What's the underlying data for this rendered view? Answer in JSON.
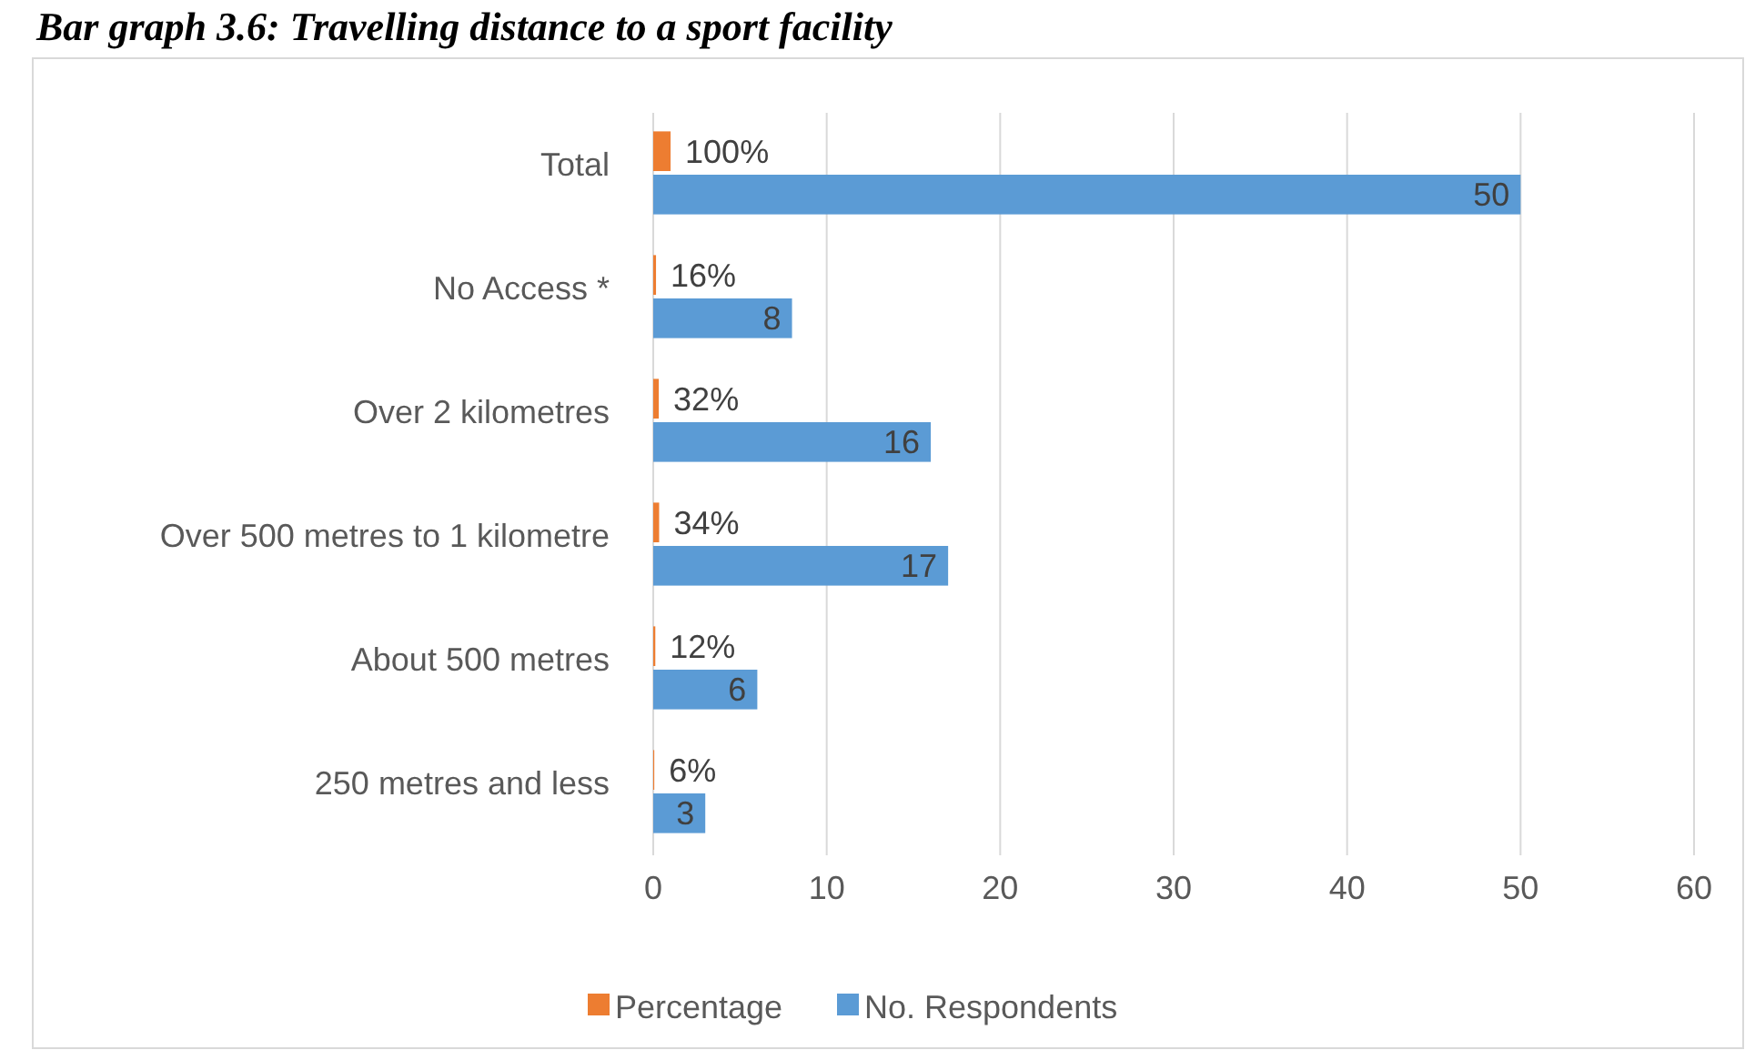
{
  "chart_data": {
    "type": "bar",
    "orientation": "horizontal",
    "title": "Bar graph 3.6: Travelling distance to a sport facility",
    "categories": [
      "Total",
      "No Access *",
      "Over 2 kilometres",
      "Over 500 metres to 1 kilometre",
      "About 500 metres",
      "250 metres and less"
    ],
    "series": [
      {
        "name": "Percentage",
        "color": "#ed7d31",
        "values": [
          1,
          0.16,
          0.32,
          0.34,
          0.12,
          0.06
        ],
        "value_labels": [
          "100%",
          "16%",
          "32%",
          "34%",
          "12%",
          "6%"
        ]
      },
      {
        "name": "No. Respondents",
        "color": "#5b9bd5",
        "values": [
          50,
          8,
          16,
          17,
          6,
          3
        ],
        "value_labels": [
          "50",
          "8",
          "16",
          "17",
          "6",
          "3"
        ]
      }
    ],
    "xlim": [
      0,
      60
    ],
    "xticks": [
      0,
      10,
      20,
      30,
      40,
      50,
      60
    ],
    "grid": "x",
    "legend": "bottom"
  }
}
